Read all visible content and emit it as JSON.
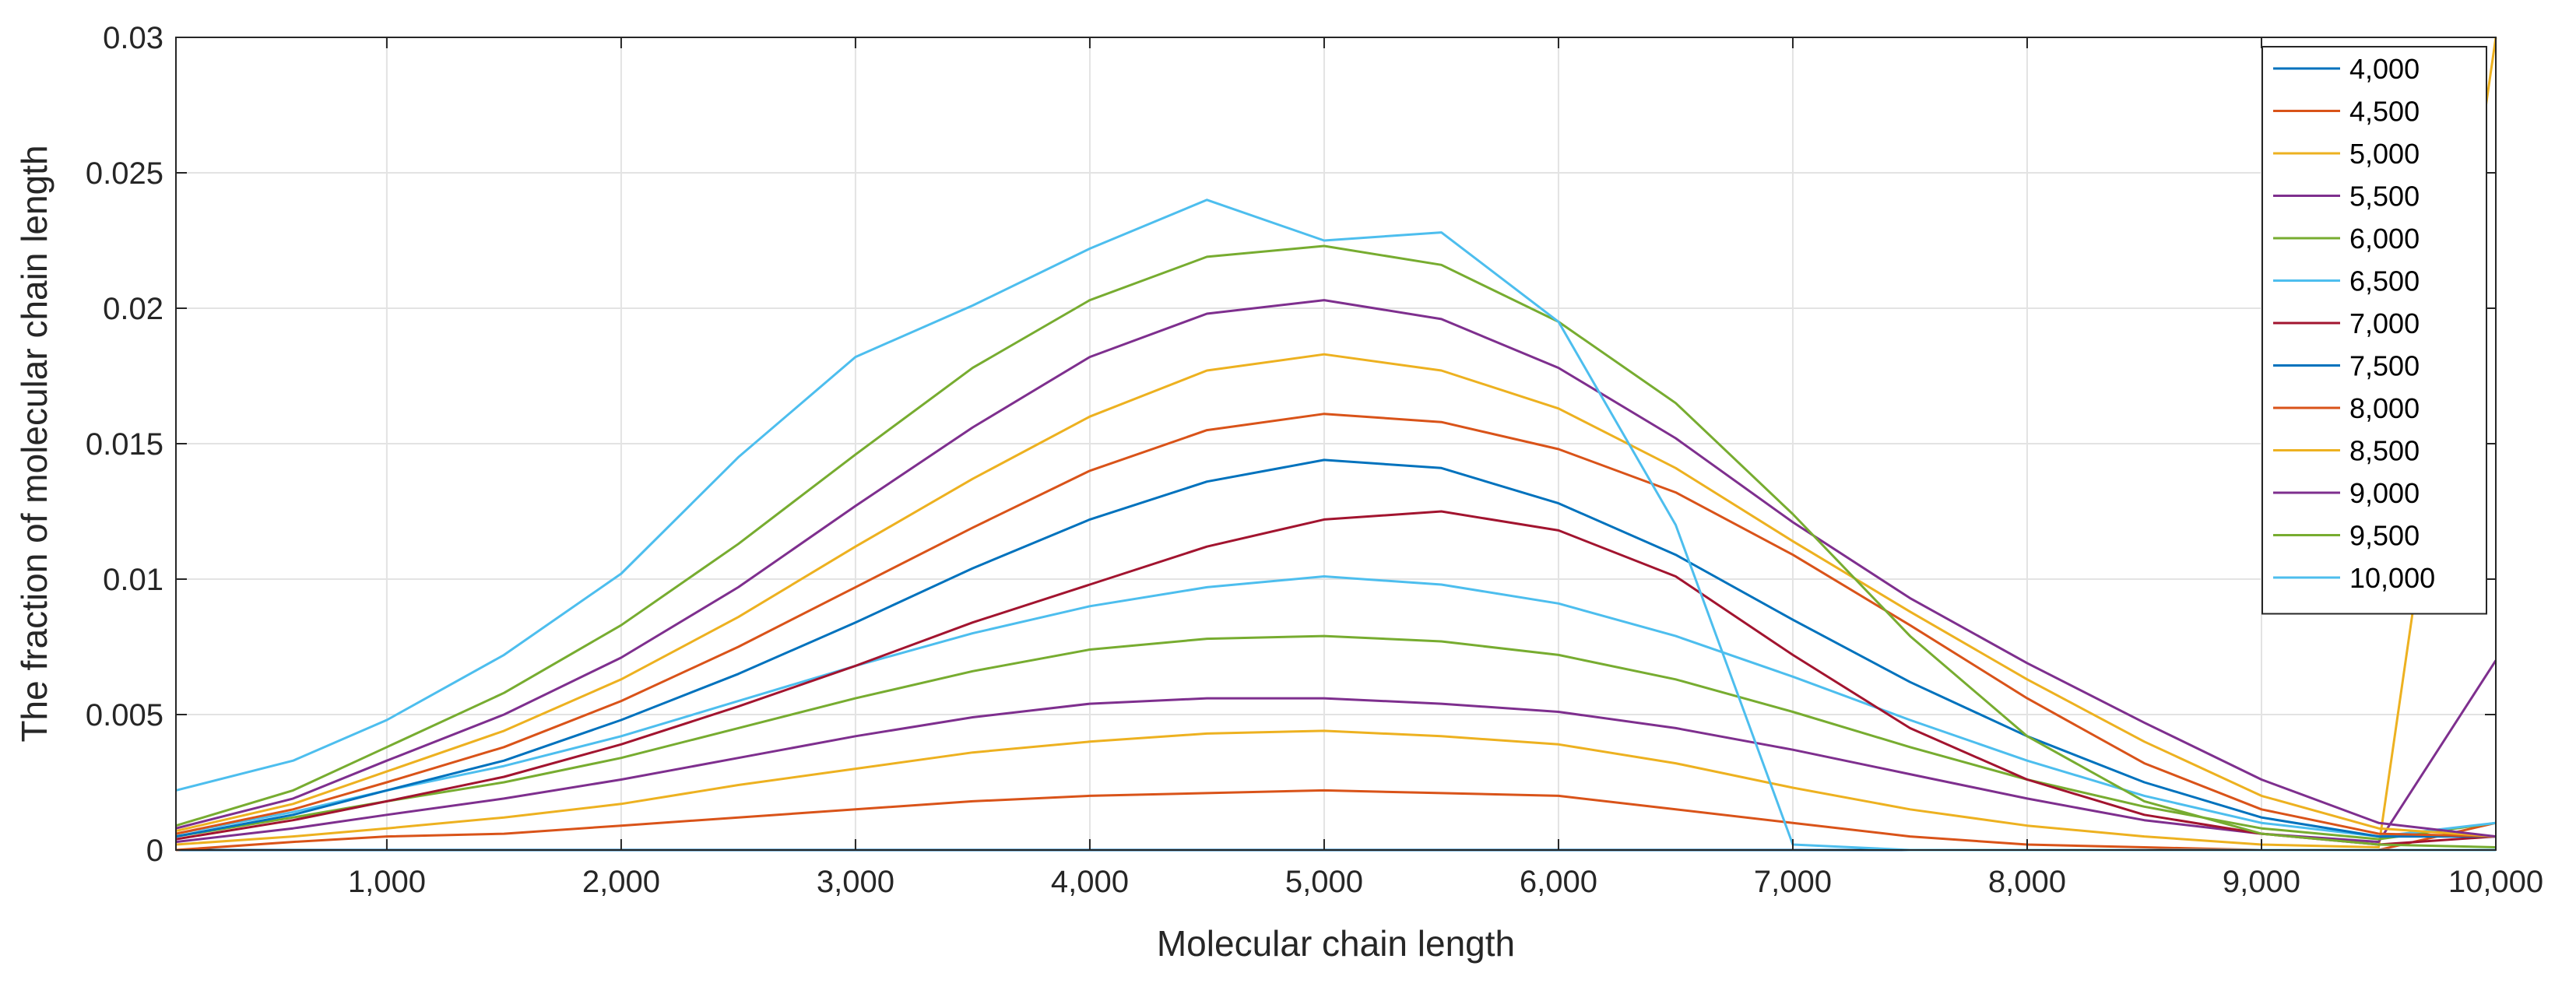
{
  "chart_data": {
    "type": "line",
    "title": "",
    "xlabel": "Molecular chain length",
    "ylabel": "The fraction of molecular chain length",
    "xlim": [
      100,
      10000
    ],
    "ylim": [
      0,
      0.03
    ],
    "grid": true,
    "legend_position": "top-right",
    "xticks": [
      1000,
      2000,
      3000,
      4000,
      5000,
      6000,
      7000,
      8000,
      9000,
      10000
    ],
    "xtick_labels": [
      "1,000",
      "2,000",
      "3,000",
      "4,000",
      "5,000",
      "6,000",
      "7,000",
      "8,000",
      "9,000",
      "10,000"
    ],
    "yticks": [
      0,
      0.005,
      0.01,
      0.015,
      0.02,
      0.025,
      0.03
    ],
    "ytick_labels": [
      "0",
      "0.005",
      "0.01",
      "0.015",
      "0.02",
      "0.025",
      "0.03"
    ],
    "x": [
      100,
      600,
      1000,
      1500,
      2000,
      2500,
      3000,
      3500,
      4000,
      4500,
      5000,
      5500,
      6000,
      6500,
      7000,
      7500,
      8000,
      8500,
      9000,
      9500,
      10000
    ],
    "series": [
      {
        "name": "4,000",
        "color": "#0072BD",
        "values": [
          0,
          0,
          0,
          0,
          0,
          0,
          0,
          0,
          0,
          0,
          0,
          0,
          0,
          0,
          0,
          0,
          0,
          0,
          0,
          0,
          0
        ]
      },
      {
        "name": "4,500",
        "color": "#D95319",
        "values": [
          0,
          0.0003,
          0.0005,
          0.0006,
          0.0009,
          0.0012,
          0.0015,
          0.0018,
          0.002,
          0.0021,
          0.0022,
          0.0021,
          0.002,
          0.0015,
          0.001,
          0.0005,
          0.0002,
          0.0001,
          0,
          0,
          0.001
        ]
      },
      {
        "name": "5,000",
        "color": "#EDB120",
        "values": [
          0.0002,
          0.0005,
          0.0008,
          0.0012,
          0.0017,
          0.0024,
          0.003,
          0.0036,
          0.004,
          0.0043,
          0.0044,
          0.0042,
          0.0039,
          0.0032,
          0.0023,
          0.0015,
          0.0009,
          0.0005,
          0.0002,
          0.0001,
          0.03
        ]
      },
      {
        "name": "5,500",
        "color": "#7E2F8E",
        "values": [
          0.0003,
          0.0008,
          0.0013,
          0.0019,
          0.0026,
          0.0034,
          0.0042,
          0.0049,
          0.0054,
          0.0056,
          0.0056,
          0.0054,
          0.0051,
          0.0045,
          0.0037,
          0.0028,
          0.0019,
          0.0011,
          0.0006,
          0.0003,
          0.007
        ]
      },
      {
        "name": "6,000",
        "color": "#77AC30",
        "values": [
          0.0005,
          0.0012,
          0.0018,
          0.0025,
          0.0034,
          0.0045,
          0.0056,
          0.0066,
          0.0074,
          0.0078,
          0.0079,
          0.0077,
          0.0072,
          0.0063,
          0.0051,
          0.0038,
          0.0026,
          0.0016,
          0.0008,
          0.0004,
          0.001
        ]
      },
      {
        "name": "6,500",
        "color": "#4DBEEE",
        "values": [
          0.0006,
          0.0014,
          0.0022,
          0.0031,
          0.0042,
          0.0055,
          0.0068,
          0.008,
          0.009,
          0.0097,
          0.0101,
          0.0098,
          0.0091,
          0.0079,
          0.0064,
          0.0048,
          0.0033,
          0.002,
          0.001,
          0.0005,
          0.001
        ]
      },
      {
        "name": "7,000",
        "color": "#A2142F",
        "values": [
          0.0004,
          0.0011,
          0.0018,
          0.0027,
          0.0039,
          0.0053,
          0.0068,
          0.0084,
          0.0098,
          0.0112,
          0.0122,
          0.0125,
          0.0118,
          0.0101,
          0.0072,
          0.0045,
          0.0026,
          0.0013,
          0.0006,
          0.0002,
          0.0005
        ]
      },
      {
        "name": "7,500",
        "color": "#0072BD",
        "values": [
          0.0005,
          0.0013,
          0.0022,
          0.0033,
          0.0048,
          0.0065,
          0.0084,
          0.0104,
          0.0122,
          0.0136,
          0.0144,
          0.0141,
          0.0128,
          0.0109,
          0.0085,
          0.0062,
          0.0042,
          0.0025,
          0.0012,
          0.0005,
          0.0005
        ]
      },
      {
        "name": "8,000",
        "color": "#D95319",
        "values": [
          0.0006,
          0.0015,
          0.0025,
          0.0038,
          0.0055,
          0.0075,
          0.0097,
          0.0119,
          0.014,
          0.0155,
          0.0161,
          0.0158,
          0.0148,
          0.0132,
          0.0109,
          0.0083,
          0.0056,
          0.0032,
          0.0015,
          0.0006,
          0.0005
        ]
      },
      {
        "name": "8,500",
        "color": "#EDB120",
        "values": [
          0.0007,
          0.0017,
          0.0029,
          0.0044,
          0.0063,
          0.0086,
          0.0112,
          0.0137,
          0.016,
          0.0177,
          0.0183,
          0.0177,
          0.0163,
          0.0141,
          0.0114,
          0.0088,
          0.0063,
          0.004,
          0.002,
          0.0008,
          0.0005
        ]
      },
      {
        "name": "9,000",
        "color": "#7E2F8E",
        "values": [
          0.0008,
          0.0019,
          0.0033,
          0.005,
          0.0071,
          0.0097,
          0.0127,
          0.0156,
          0.0182,
          0.0198,
          0.0203,
          0.0196,
          0.0178,
          0.0152,
          0.0121,
          0.0093,
          0.0069,
          0.0047,
          0.0026,
          0.001,
          0.0005
        ]
      },
      {
        "name": "9,500",
        "color": "#77AC30",
        "values": [
          0.0009,
          0.0022,
          0.0038,
          0.0058,
          0.0083,
          0.0113,
          0.0146,
          0.0178,
          0.0203,
          0.0219,
          0.0223,
          0.0216,
          0.0195,
          0.0165,
          0.0124,
          0.0079,
          0.0042,
          0.0018,
          0.0006,
          0.0002,
          0.0001
        ]
      },
      {
        "name": "10,000",
        "color": "#4DBEEE",
        "values": [
          0.0022,
          0.0033,
          0.0048,
          0.0072,
          0.0102,
          0.0145,
          0.0182,
          0.0201,
          0.0222,
          0.024,
          0.0225,
          0.0228,
          0.0195,
          0.012,
          0.0002,
          0,
          0,
          0,
          0,
          0,
          0
        ]
      }
    ]
  }
}
